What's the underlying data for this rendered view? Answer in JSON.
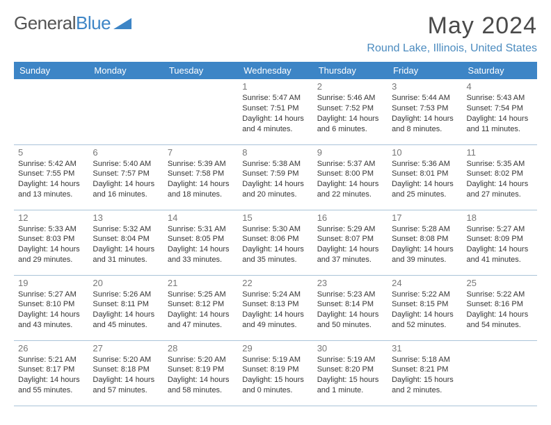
{
  "brand": {
    "part1": "General",
    "part2": "Blue"
  },
  "title": "May 2024",
  "location": "Round Lake, Illinois, United States",
  "colors": {
    "header_bg": "#3d85c6",
    "header_fg": "#ffffff",
    "border": "#a9c3d8",
    "title_color": "#4a4a4a",
    "location_color": "#4b8bbf"
  },
  "day_headers": [
    "Sunday",
    "Monday",
    "Tuesday",
    "Wednesday",
    "Thursday",
    "Friday",
    "Saturday"
  ],
  "weeks": [
    [
      {
        "n": "",
        "sr": "",
        "ss": "",
        "d1": "",
        "d2": ""
      },
      {
        "n": "",
        "sr": "",
        "ss": "",
        "d1": "",
        "d2": ""
      },
      {
        "n": "",
        "sr": "",
        "ss": "",
        "d1": "",
        "d2": ""
      },
      {
        "n": "1",
        "sr": "Sunrise: 5:47 AM",
        "ss": "Sunset: 7:51 PM",
        "d1": "Daylight: 14 hours",
        "d2": "and 4 minutes."
      },
      {
        "n": "2",
        "sr": "Sunrise: 5:46 AM",
        "ss": "Sunset: 7:52 PM",
        "d1": "Daylight: 14 hours",
        "d2": "and 6 minutes."
      },
      {
        "n": "3",
        "sr": "Sunrise: 5:44 AM",
        "ss": "Sunset: 7:53 PM",
        "d1": "Daylight: 14 hours",
        "d2": "and 8 minutes."
      },
      {
        "n": "4",
        "sr": "Sunrise: 5:43 AM",
        "ss": "Sunset: 7:54 PM",
        "d1": "Daylight: 14 hours",
        "d2": "and 11 minutes."
      }
    ],
    [
      {
        "n": "5",
        "sr": "Sunrise: 5:42 AM",
        "ss": "Sunset: 7:55 PM",
        "d1": "Daylight: 14 hours",
        "d2": "and 13 minutes."
      },
      {
        "n": "6",
        "sr": "Sunrise: 5:40 AM",
        "ss": "Sunset: 7:57 PM",
        "d1": "Daylight: 14 hours",
        "d2": "and 16 minutes."
      },
      {
        "n": "7",
        "sr": "Sunrise: 5:39 AM",
        "ss": "Sunset: 7:58 PM",
        "d1": "Daylight: 14 hours",
        "d2": "and 18 minutes."
      },
      {
        "n": "8",
        "sr": "Sunrise: 5:38 AM",
        "ss": "Sunset: 7:59 PM",
        "d1": "Daylight: 14 hours",
        "d2": "and 20 minutes."
      },
      {
        "n": "9",
        "sr": "Sunrise: 5:37 AM",
        "ss": "Sunset: 8:00 PM",
        "d1": "Daylight: 14 hours",
        "d2": "and 22 minutes."
      },
      {
        "n": "10",
        "sr": "Sunrise: 5:36 AM",
        "ss": "Sunset: 8:01 PM",
        "d1": "Daylight: 14 hours",
        "d2": "and 25 minutes."
      },
      {
        "n": "11",
        "sr": "Sunrise: 5:35 AM",
        "ss": "Sunset: 8:02 PM",
        "d1": "Daylight: 14 hours",
        "d2": "and 27 minutes."
      }
    ],
    [
      {
        "n": "12",
        "sr": "Sunrise: 5:33 AM",
        "ss": "Sunset: 8:03 PM",
        "d1": "Daylight: 14 hours",
        "d2": "and 29 minutes."
      },
      {
        "n": "13",
        "sr": "Sunrise: 5:32 AM",
        "ss": "Sunset: 8:04 PM",
        "d1": "Daylight: 14 hours",
        "d2": "and 31 minutes."
      },
      {
        "n": "14",
        "sr": "Sunrise: 5:31 AM",
        "ss": "Sunset: 8:05 PM",
        "d1": "Daylight: 14 hours",
        "d2": "and 33 minutes."
      },
      {
        "n": "15",
        "sr": "Sunrise: 5:30 AM",
        "ss": "Sunset: 8:06 PM",
        "d1": "Daylight: 14 hours",
        "d2": "and 35 minutes."
      },
      {
        "n": "16",
        "sr": "Sunrise: 5:29 AM",
        "ss": "Sunset: 8:07 PM",
        "d1": "Daylight: 14 hours",
        "d2": "and 37 minutes."
      },
      {
        "n": "17",
        "sr": "Sunrise: 5:28 AM",
        "ss": "Sunset: 8:08 PM",
        "d1": "Daylight: 14 hours",
        "d2": "and 39 minutes."
      },
      {
        "n": "18",
        "sr": "Sunrise: 5:27 AM",
        "ss": "Sunset: 8:09 PM",
        "d1": "Daylight: 14 hours",
        "d2": "and 41 minutes."
      }
    ],
    [
      {
        "n": "19",
        "sr": "Sunrise: 5:27 AM",
        "ss": "Sunset: 8:10 PM",
        "d1": "Daylight: 14 hours",
        "d2": "and 43 minutes."
      },
      {
        "n": "20",
        "sr": "Sunrise: 5:26 AM",
        "ss": "Sunset: 8:11 PM",
        "d1": "Daylight: 14 hours",
        "d2": "and 45 minutes."
      },
      {
        "n": "21",
        "sr": "Sunrise: 5:25 AM",
        "ss": "Sunset: 8:12 PM",
        "d1": "Daylight: 14 hours",
        "d2": "and 47 minutes."
      },
      {
        "n": "22",
        "sr": "Sunrise: 5:24 AM",
        "ss": "Sunset: 8:13 PM",
        "d1": "Daylight: 14 hours",
        "d2": "and 49 minutes."
      },
      {
        "n": "23",
        "sr": "Sunrise: 5:23 AM",
        "ss": "Sunset: 8:14 PM",
        "d1": "Daylight: 14 hours",
        "d2": "and 50 minutes."
      },
      {
        "n": "24",
        "sr": "Sunrise: 5:22 AM",
        "ss": "Sunset: 8:15 PM",
        "d1": "Daylight: 14 hours",
        "d2": "and 52 minutes."
      },
      {
        "n": "25",
        "sr": "Sunrise: 5:22 AM",
        "ss": "Sunset: 8:16 PM",
        "d1": "Daylight: 14 hours",
        "d2": "and 54 minutes."
      }
    ],
    [
      {
        "n": "26",
        "sr": "Sunrise: 5:21 AM",
        "ss": "Sunset: 8:17 PM",
        "d1": "Daylight: 14 hours",
        "d2": "and 55 minutes."
      },
      {
        "n": "27",
        "sr": "Sunrise: 5:20 AM",
        "ss": "Sunset: 8:18 PM",
        "d1": "Daylight: 14 hours",
        "d2": "and 57 minutes."
      },
      {
        "n": "28",
        "sr": "Sunrise: 5:20 AM",
        "ss": "Sunset: 8:19 PM",
        "d1": "Daylight: 14 hours",
        "d2": "and 58 minutes."
      },
      {
        "n": "29",
        "sr": "Sunrise: 5:19 AM",
        "ss": "Sunset: 8:19 PM",
        "d1": "Daylight: 15 hours",
        "d2": "and 0 minutes."
      },
      {
        "n": "30",
        "sr": "Sunrise: 5:19 AM",
        "ss": "Sunset: 8:20 PM",
        "d1": "Daylight: 15 hours",
        "d2": "and 1 minute."
      },
      {
        "n": "31",
        "sr": "Sunrise: 5:18 AM",
        "ss": "Sunset: 8:21 PM",
        "d1": "Daylight: 15 hours",
        "d2": "and 2 minutes."
      },
      {
        "n": "",
        "sr": "",
        "ss": "",
        "d1": "",
        "d2": ""
      }
    ]
  ]
}
